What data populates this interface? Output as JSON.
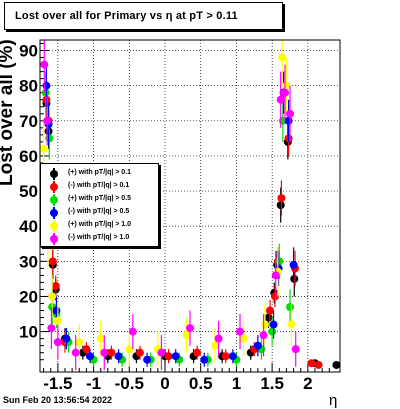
{
  "header": {
    "title": "Lost over all for Primary vs  η at pT > 0.11"
  },
  "footer": {
    "date": "Sun Feb 20 13:56:54 2022"
  },
  "chart_data": {
    "type": "scatter",
    "title": "Lost over all for Primary vs  η at pT > 0.11",
    "xlabel": "η",
    "ylabel": "Lost over all (%)",
    "xlim": [
      -1.75,
      2.45
    ],
    "ylim": [
      -1.5,
      93
    ],
    "xticks": [
      -1.5,
      -1,
      -0.5,
      0,
      0.5,
      1,
      1.5,
      2
    ],
    "xtick_labels": [
      "-1.5",
      "-1",
      "-0.5",
      "0",
      "0.5",
      "1",
      "1.5",
      "2"
    ],
    "yticks": [
      10,
      20,
      30,
      40,
      50,
      60,
      70,
      80,
      90
    ],
    "ytick_labels": [
      "10",
      "20",
      "30",
      "40",
      "50",
      "60",
      "70",
      "80",
      "90"
    ],
    "grid": true,
    "legend_position": "left-middle",
    "series": [
      {
        "name": "(+) with pT/|q| > 0.1",
        "color": "#000000",
        "x": [
          -1.66,
          -1.63,
          -1.57,
          -1.53,
          -1.4,
          -1.15,
          -0.8,
          -0.4,
          0.0,
          0.4,
          0.8,
          1.2,
          1.45,
          1.53,
          1.57,
          1.62,
          1.72,
          1.81,
          2.1,
          2.4
        ],
        "y": [
          75,
          67,
          29,
          22,
          8,
          4,
          3,
          3,
          3,
          3,
          3,
          4,
          14,
          21,
          29,
          46,
          64,
          25,
          1,
          0.5
        ],
        "err": [
          5,
          5,
          4,
          3,
          3,
          2,
          2,
          2,
          2,
          2,
          2,
          2,
          3,
          3,
          4,
          5,
          5,
          5,
          1,
          1
        ]
      },
      {
        "name": "(-) with pT/|q| > 0.1",
        "color": "#ff0000",
        "x": [
          -1.66,
          -1.63,
          -1.57,
          -1.53,
          -1.4,
          -1.1,
          -0.75,
          -0.35,
          0.05,
          0.45,
          0.85,
          1.25,
          1.47,
          1.54,
          1.58,
          1.63,
          1.73,
          1.82,
          2.05,
          2.15
        ],
        "y": [
          76,
          70,
          30,
          23,
          7,
          5,
          4,
          4,
          3,
          4,
          3,
          5,
          16,
          20,
          30,
          48,
          65,
          28,
          1,
          0.5
        ],
        "err": [
          5,
          5,
          4,
          3,
          3,
          2,
          2,
          2,
          2,
          2,
          2,
          2,
          3,
          3,
          4,
          5,
          5,
          5,
          1,
          1
        ]
      },
      {
        "name": "(+) with pT/|q| > 0.5",
        "color": "#00dd00",
        "x": [
          -1.67,
          -1.62,
          -1.58,
          -1.52,
          -1.35,
          -1.0,
          -0.6,
          -0.2,
          0.2,
          0.6,
          1.0,
          1.35,
          1.5,
          1.6,
          1.65,
          1.75
        ],
        "y": [
          78,
          65,
          17,
          15,
          7,
          2,
          2,
          2,
          2,
          2,
          2,
          5,
          10,
          30,
          70,
          17
        ],
        "err": [
          6,
          6,
          5,
          4,
          3,
          2,
          2,
          2,
          2,
          2,
          2,
          3,
          4,
          5,
          6,
          5
        ]
      },
      {
        "name": "(-) with pT/|q| > 0.5",
        "color": "#0000ff",
        "x": [
          -1.66,
          -1.63,
          -1.58,
          -1.52,
          -1.38,
          -1.05,
          -0.65,
          -0.25,
          0.15,
          0.55,
          0.95,
          1.3,
          1.52,
          1.59,
          1.66,
          1.73,
          1.8
        ],
        "y": [
          80,
          69,
          20,
          16,
          8,
          3,
          3,
          2,
          3,
          2,
          3,
          6,
          12,
          28,
          78,
          70,
          29
        ],
        "err": [
          6,
          6,
          5,
          4,
          3,
          2,
          2,
          2,
          2,
          2,
          2,
          3,
          4,
          5,
          6,
          6,
          5
        ]
      },
      {
        "name": "(+) with pT/|q| > 1.0",
        "color": "#ffff00",
        "x": [
          -1.7,
          -1.64,
          -1.58,
          -1.5,
          -1.2,
          -0.9,
          -0.5,
          -0.1,
          0.3,
          0.7,
          1.1,
          1.4,
          1.58,
          1.64,
          1.7,
          1.77
        ],
        "y": [
          62,
          35,
          20,
          13,
          7,
          8,
          5,
          5,
          9,
          6,
          8,
          12,
          27,
          88,
          80,
          12
        ],
        "err": [
          8,
          7,
          6,
          5,
          5,
          5,
          5,
          5,
          5,
          5,
          5,
          6,
          7,
          8,
          8,
          6
        ]
      },
      {
        "name": "(-) with pT/|q| > 1.0",
        "color": "#ff00ff",
        "x": [
          -1.69,
          -1.65,
          -1.59,
          -1.5,
          -1.25,
          -0.85,
          -0.45,
          -0.05,
          0.35,
          0.75,
          1.05,
          1.38,
          1.55,
          1.62,
          1.68,
          1.75,
          1.83
        ],
        "y": [
          86,
          70,
          11,
          7,
          4,
          4,
          10,
          4,
          11,
          8,
          10,
          9,
          26,
          76,
          78,
          72,
          5
        ],
        "err": [
          8,
          7,
          6,
          5,
          5,
          5,
          5,
          5,
          5,
          5,
          5,
          6,
          7,
          8,
          8,
          8,
          5
        ]
      }
    ]
  }
}
